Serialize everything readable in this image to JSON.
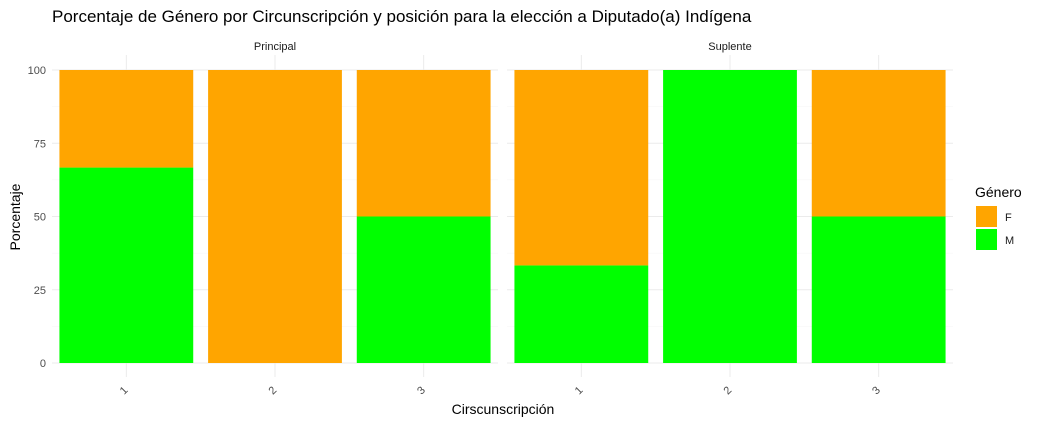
{
  "chart_data": {
    "type": "bar",
    "stacked": true,
    "title": "Porcentaje de Género por Circunscripción y posición para la elección a Diputado(a) Indígena",
    "xlabel": "Cirscunscripción",
    "ylabel": "Porcentaje",
    "ylim": [
      0,
      100
    ],
    "yticks": [
      0,
      25,
      50,
      75,
      100
    ],
    "grid": true,
    "legend": {
      "title": "Género",
      "position": "right",
      "entries": [
        {
          "label": "F",
          "color": "#FFA500"
        },
        {
          "label": "M",
          "color": "#00FF00"
        }
      ]
    },
    "facets": [
      {
        "label": "Principal",
        "categories": [
          "1",
          "2",
          "3"
        ],
        "series": [
          {
            "name": "M",
            "color": "#00FF00",
            "values": [
              66.7,
              0,
              50
            ]
          },
          {
            "name": "F",
            "color": "#FFA500",
            "values": [
              33.3,
              100,
              50
            ]
          }
        ]
      },
      {
        "label": "Suplente",
        "categories": [
          "1",
          "2",
          "3"
        ],
        "series": [
          {
            "name": "M",
            "color": "#00FF00",
            "values": [
              33.3,
              100,
              50
            ]
          },
          {
            "name": "F",
            "color": "#FFA500",
            "values": [
              66.7,
              0,
              50
            ]
          }
        ]
      }
    ]
  }
}
